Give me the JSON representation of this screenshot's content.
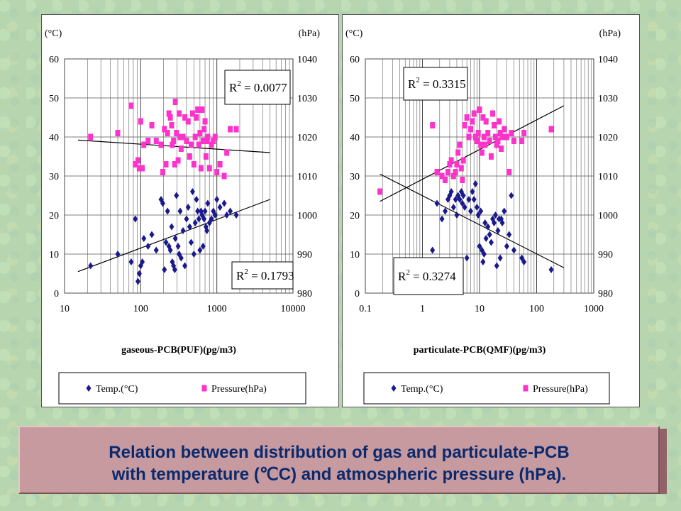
{
  "chart_data": [
    {
      "type": "scatter",
      "x_scale": "log",
      "xlabel": "gaseous-PCB(PUF)(pg/m3)",
      "xlim": [
        10,
        10000
      ],
      "x_ticks": [
        "10",
        "100",
        "1000",
        "10000"
      ],
      "left_unit": "(°C)",
      "right_unit": "(hPa)",
      "ylim_left": [
        0,
        60
      ],
      "y_ticks_left": [
        "0",
        "10",
        "20",
        "30",
        "40",
        "50",
        "60"
      ],
      "ylim_right": [
        980,
        1040
      ],
      "y_ticks_right": [
        "980",
        "990",
        "1000",
        "1010",
        "1020",
        "1030",
        "1040"
      ],
      "legend": [
        "Temp.(°C)",
        "Pressure(hPa)"
      ],
      "annotations": [
        {
          "text": "R",
          "sup": "2",
          "rest": " = 0.0077"
        },
        {
          "text": "R",
          "sup": "2",
          "rest": " = 0.1793"
        }
      ],
      "series": [
        {
          "name": "Temp.(°C)",
          "color": "#1a1a8c",
          "marker": "diamond",
          "axis": "left",
          "x": [
            22,
            50,
            75,
            85,
            92,
            96,
            100,
            105,
            110,
            125,
            140,
            160,
            185,
            195,
            205,
            215,
            225,
            235,
            245,
            255,
            260,
            270,
            280,
            285,
            295,
            310,
            320,
            330,
            340,
            360,
            380,
            400,
            420,
            440,
            460,
            480,
            500,
            520,
            540,
            560,
            580,
            600,
            620,
            640,
            660,
            680,
            700,
            720,
            740,
            760,
            800,
            850,
            900,
            950,
            1000,
            1100,
            1250,
            1350,
            1500,
            1800
          ],
          "y": [
            7,
            10,
            8,
            19,
            3,
            5,
            7,
            8,
            14,
            12,
            15,
            11,
            24,
            23,
            6,
            13,
            21,
            12,
            11,
            17,
            8,
            7,
            6,
            14,
            25,
            12,
            10,
            21,
            9,
            16,
            7,
            19,
            22,
            17,
            13,
            26,
            10,
            18,
            24,
            21,
            19,
            11,
            21,
            20,
            12,
            19,
            21,
            17,
            16,
            23,
            18,
            19,
            21,
            20,
            24,
            22,
            23,
            20,
            21,
            20
          ],
          "trend": {
            "x": [
              15,
              5000
            ],
            "y": [
              5.5,
              24
            ]
          }
        },
        {
          "name": "Pressure(hPa)",
          "color": "#ff33cc",
          "marker": "square",
          "axis": "right",
          "x": [
            22,
            50,
            75,
            85,
            92,
            96,
            100,
            105,
            110,
            125,
            140,
            160,
            185,
            195,
            205,
            215,
            225,
            235,
            245,
            255,
            260,
            270,
            280,
            285,
            295,
            310,
            320,
            330,
            340,
            360,
            380,
            400,
            420,
            440,
            460,
            480,
            500,
            520,
            540,
            560,
            580,
            600,
            620,
            640,
            660,
            680,
            700,
            720,
            740,
            760,
            800,
            850,
            900,
            950,
            1000,
            1100,
            1250,
            1350,
            1500,
            1800
          ],
          "y": [
            1020,
            1021,
            1028,
            1013,
            1014,
            1012,
            1024,
            1012,
            1018,
            1019,
            1023,
            1019,
            1018,
            1011,
            1022,
            1013,
            1021,
            1026,
            1025,
            1023,
            1018,
            1019,
            1013,
            1029,
            1021,
            1014,
            1026,
            1020,
            1017,
            1020,
            1025,
            1019,
            1024,
            1015,
            1018,
            1026,
            1013,
            1020,
            1025,
            1027,
            1018,
            1021,
            1012,
            1027,
            1019,
            1022,
            1024,
            1015,
            1019,
            1020,
            1012,
            1018,
            1019,
            1020,
            1011,
            1013,
            1010,
            1016,
            1022,
            1022
          ],
          "trend": {
            "x": [
              15,
              5000
            ],
            "y": [
              1019.2,
              1016
            ]
          }
        }
      ]
    },
    {
      "type": "scatter",
      "x_scale": "log",
      "xlabel": "particulate-PCB(QMF)(pg/m3)",
      "xlim": [
        0.1,
        1000
      ],
      "x_ticks": [
        "0.1",
        "1",
        "10",
        "100",
        "1000"
      ],
      "left_unit": "(°C)",
      "right_unit": "(hPa)",
      "ylim_left": [
        0,
        60
      ],
      "y_ticks_left": [
        "0",
        "10",
        "20",
        "30",
        "40",
        "50",
        "60"
      ],
      "ylim_right": [
        980,
        1040
      ],
      "y_ticks_right": [
        "980",
        "990",
        "1000",
        "1010",
        "1020",
        "1030",
        "1040"
      ],
      "legend": [
        "Temp.(°C)",
        "Pressure(hPa)"
      ],
      "annotations": [
        {
          "text": "R",
          "sup": "2",
          "rest": " = 0.3315"
        },
        {
          "text": "R",
          "sup": "2",
          "rest": " = 0.3274"
        }
      ],
      "series": [
        {
          "name": "Temp.(°C)",
          "color": "#1a1a8c",
          "marker": "diamond",
          "axis": "left",
          "x": [
            1.5,
            1.8,
            2.2,
            2.5,
            2.8,
            3,
            3.2,
            3.5,
            3.8,
            4,
            4.2,
            4.5,
            4.8,
            5,
            5.2,
            5.5,
            6,
            6.5,
            7,
            7.5,
            8,
            8.5,
            9,
            9.5,
            10,
            10.5,
            11,
            11.5,
            12,
            12.5,
            13,
            14,
            15,
            16,
            17,
            18,
            19,
            20,
            21,
            22,
            23,
            24,
            25,
            27,
            30,
            33,
            36,
            40,
            55,
            60,
            180
          ],
          "y": [
            11,
            23,
            19,
            21,
            24,
            25,
            26,
            22,
            24,
            20,
            25,
            24,
            26,
            23,
            25,
            22,
            9,
            24,
            21,
            26,
            24,
            28,
            22,
            20,
            12,
            21,
            11,
            8,
            10,
            18,
            14,
            17,
            15,
            13,
            19,
            18,
            20,
            7,
            16,
            19,
            9,
            19,
            18,
            21,
            12,
            15,
            25,
            11,
            9,
            8,
            6
          ],
          "trend": {
            "x": [
              0.18,
              300
            ],
            "y": [
              30.5,
              6.5
            ]
          }
        },
        {
          "name": "Pressure(hPa)",
          "color": "#ff33cc",
          "marker": "square",
          "axis": "right",
          "x": [
            0.18,
            1.5,
            1.8,
            2.2,
            2.5,
            2.8,
            3,
            3.2,
            3.5,
            3.8,
            4,
            4.2,
            4.5,
            4.8,
            5,
            5.2,
            5.5,
            6,
            6.5,
            7,
            7.5,
            8,
            8.5,
            9,
            9.5,
            10,
            10.5,
            11,
            11.5,
            12,
            12.5,
            13,
            14,
            15,
            16,
            17,
            18,
            19,
            20,
            21,
            22,
            23,
            24,
            25,
            27,
            30,
            33,
            36,
            40,
            55,
            60,
            180
          ],
          "y": [
            1006,
            1023,
            1011,
            1010,
            1009,
            1011,
            1013,
            1014,
            1010,
            1011,
            1013,
            1016,
            1018,
            1012,
            1009,
            1014,
            1023,
            1025,
            1020,
            1022,
            1024,
            1026,
            1020,
            1019,
            1021,
            1027,
            1018,
            1016,
            1025,
            1020,
            1018,
            1024,
            1021,
            1019,
            1015,
            1026,
            1023,
            1020,
            1018,
            1019,
            1024,
            1021,
            1017,
            1020,
            1022,
            1020,
            1011,
            1021,
            1019,
            1019,
            1021,
            1022
          ],
          "trend": {
            "x": [
              0.18,
              300
            ],
            "y": [
              1003.5,
              1028
            ]
          }
        }
      ]
    }
  ],
  "caption": {
    "line1": "Relation between distribution of gas and particulate-PCB",
    "line2": "with temperature (℃C) and atmospheric pressure (hPa)."
  }
}
